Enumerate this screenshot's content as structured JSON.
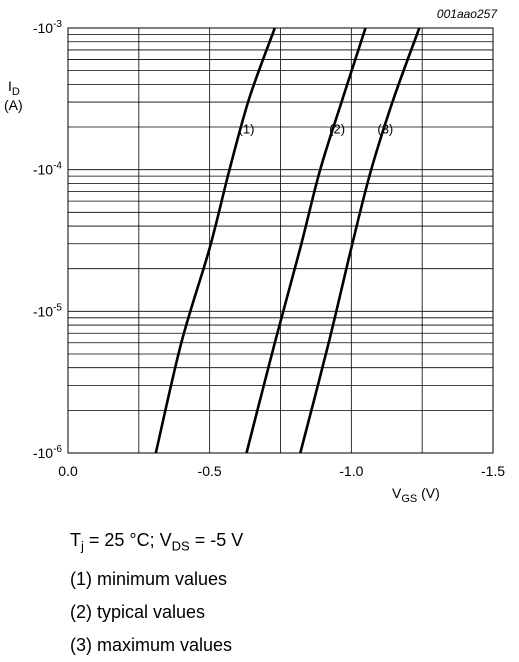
{
  "chart_data": {
    "type": "line",
    "figure_code": "001aao257",
    "y_axis": {
      "title_main": "I",
      "title_sub": "D",
      "title_unit": "(A)",
      "scale": "log",
      "ylim": [
        -1e-06,
        -0.001
      ],
      "tick_labels": [
        {
          "base": "-10",
          "exp": "-3",
          "value": -0.001
        },
        {
          "base": "-10",
          "exp": "-4",
          "value": -0.0001
        },
        {
          "base": "-10",
          "exp": "-5",
          "value": -1e-05
        },
        {
          "base": "-10",
          "exp": "-6",
          "value": -1e-06
        }
      ]
    },
    "x_axis": {
      "title_main": "V",
      "title_sub": "GS",
      "title_unit": " (V)",
      "xlim": [
        0.0,
        -1.5
      ],
      "tick_labels": [
        {
          "label": "0.0",
          "value": 0.0
        },
        {
          "label": "-0.5",
          "value": -0.5
        },
        {
          "label": "-1.0",
          "value": -1.0
        },
        {
          "label": "-1.5",
          "value": -1.5
        }
      ],
      "minor_step": -0.25
    },
    "grid": true,
    "series": [
      {
        "label": "(1)",
        "points": [
          [
            -0.31,
            -1e-06
          ],
          [
            -0.4,
            -6e-06
          ],
          [
            -0.5,
            -2.8e-05
          ],
          [
            -0.57,
            -0.0001
          ],
          [
            -0.64,
            -0.00032
          ],
          [
            -0.73,
            -0.001
          ]
        ],
        "label_at": [
          -0.63,
          -0.00018
        ]
      },
      {
        "label": "(2)",
        "points": [
          [
            -0.63,
            -1e-06
          ],
          [
            -0.73,
            -6e-06
          ],
          [
            -0.82,
            -2.8e-05
          ],
          [
            -0.89,
            -0.0001
          ],
          [
            -0.97,
            -0.00032
          ],
          [
            -1.05,
            -0.001
          ]
        ],
        "label_at": [
          -0.95,
          -0.00018
        ]
      },
      {
        "label": "(3)",
        "points": [
          [
            -0.82,
            -1e-06
          ],
          [
            -0.92,
            -6e-06
          ],
          [
            -1.0,
            -2.8e-05
          ],
          [
            -1.07,
            -0.0001
          ],
          [
            -1.15,
            -0.00032
          ],
          [
            -1.24,
            -0.001
          ]
        ],
        "label_at": [
          -1.12,
          -0.00018
        ]
      }
    ]
  },
  "notes": {
    "conditions": {
      "t": "T",
      "t_sub": "j",
      "middle": " = 25 °C; V",
      "v_sub": "DS",
      "end": " = -5 V"
    },
    "legend": [
      "(1) minimum values",
      "(2) typical values",
      "(3) maximum values"
    ]
  }
}
